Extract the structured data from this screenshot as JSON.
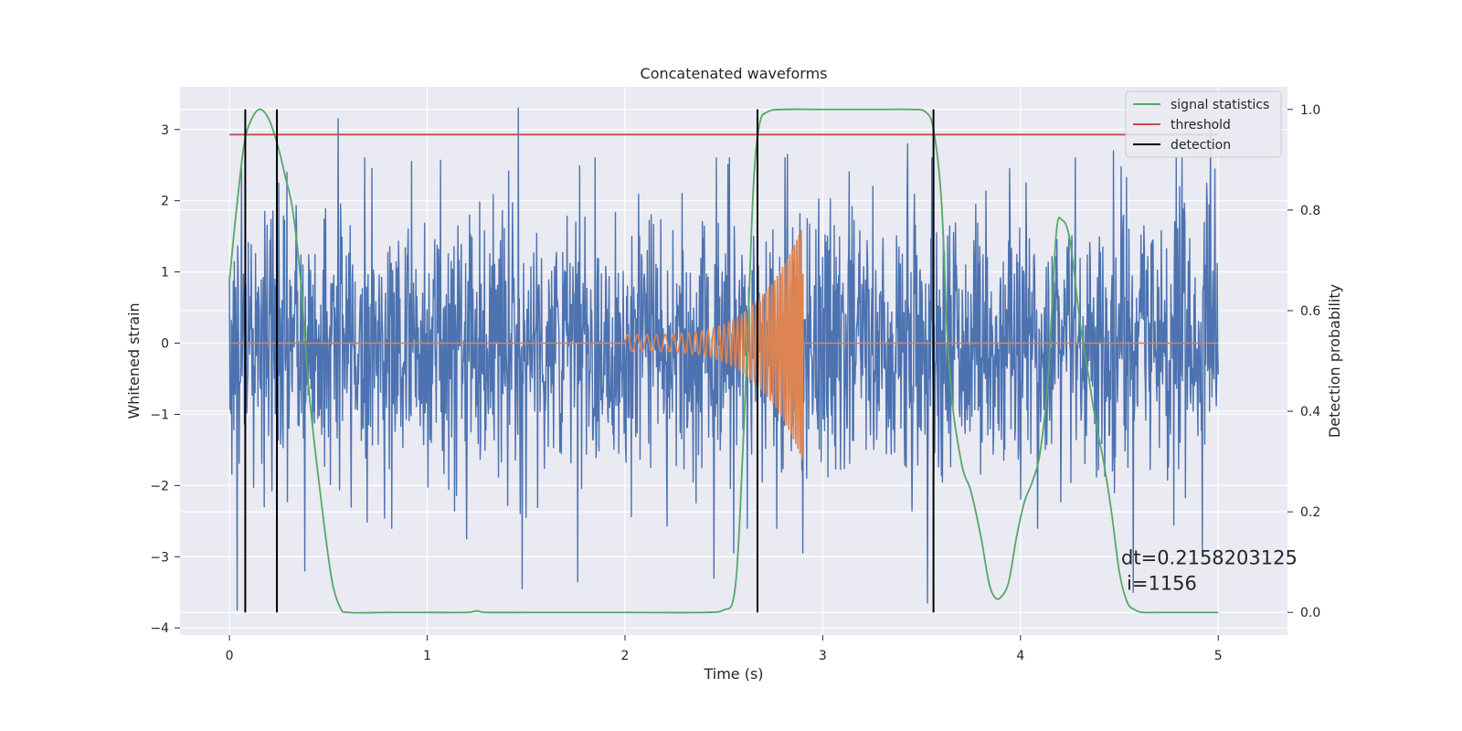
{
  "chart_data": {
    "type": "line",
    "title": "Concatenated waveforms",
    "xlabel": "Time (s)",
    "ylabel": "Whitened strain",
    "y2label": "Detection probability",
    "xlim": [
      -0.25,
      5.35
    ],
    "ylim": [
      -4.1,
      3.6
    ],
    "y2lim": [
      -0.045,
      1.045
    ],
    "xticks": [
      0,
      1,
      2,
      3,
      4,
      5
    ],
    "yticks": [
      -4,
      -3,
      -2,
      -1,
      0,
      1,
      2,
      3
    ],
    "y2ticks": [
      0.0,
      0.2,
      0.4,
      0.6,
      0.8,
      1.0
    ],
    "grid": true,
    "legend_position": "top-right",
    "colors": {
      "noise": "#4c72b0",
      "signal": "#dd8452",
      "statistics": "#55a868",
      "threshold": "#c44e52",
      "detection": "#000000",
      "plot_bg": "#eaeaf2",
      "grid": "#ffffff"
    },
    "legend": [
      "signal statistics",
      "threshold",
      "detection"
    ],
    "noise": {
      "x_range": [
        0,
        5
      ],
      "samples": 2048,
      "sigma": 0.95,
      "spike_values": [
        {
          "x": 0.04,
          "y": -3.75
        },
        {
          "x": 0.06,
          "y": 2.45
        },
        {
          "x": 0.25,
          "y": 2.25
        },
        {
          "x": 0.38,
          "y": -3.2
        },
        {
          "x": 0.55,
          "y": 3.15
        },
        {
          "x": 0.92,
          "y": 2.55
        },
        {
          "x": 1.2,
          "y": -2.75
        },
        {
          "x": 1.46,
          "y": 3.3
        },
        {
          "x": 1.48,
          "y": -3.45
        },
        {
          "x": 1.76,
          "y": -3.35
        },
        {
          "x": 2.45,
          "y": -3.3
        },
        {
          "x": 2.55,
          "y": -2.95
        },
        {
          "x": 2.82,
          "y": 2.65
        },
        {
          "x": 2.9,
          "y": -2.95
        },
        {
          "x": 3.43,
          "y": 2.8
        },
        {
          "x": 3.53,
          "y": -3.65
        },
        {
          "x": 4.47,
          "y": 2.7
        },
        {
          "x": 4.57,
          "y": -3.5
        },
        {
          "x": 4.92,
          "y": -2.9
        },
        {
          "x": 4.96,
          "y": 3.1
        }
      ]
    },
    "signal": {
      "x_start": 2.0,
      "x_end": 2.9,
      "amp_start": 0.12,
      "amp_end": 1.65,
      "freq_start": 20,
      "freq_end": 95
    },
    "series": [
      {
        "name": "signal statistics",
        "axis": "y2",
        "x": [
          0.0,
          0.03,
          0.07,
          0.1,
          0.15,
          0.2,
          0.25,
          0.28,
          0.32,
          0.36,
          0.4,
          0.44,
          0.48,
          0.52,
          0.56,
          0.6,
          0.8,
          1.0,
          1.2,
          1.25,
          1.3,
          1.5,
          2.0,
          2.4,
          2.5,
          2.55,
          2.58,
          2.62,
          2.65,
          2.68,
          2.72,
          2.8,
          3.0,
          3.3,
          3.45,
          3.52,
          3.56,
          3.6,
          3.63,
          3.66,
          3.7,
          3.72,
          3.75,
          3.8,
          3.84,
          3.87,
          3.9,
          3.94,
          3.98,
          4.02,
          4.06,
          4.1,
          4.14,
          4.18,
          4.21,
          4.25,
          4.3,
          4.34,
          4.38,
          4.42,
          4.46,
          4.5,
          4.54,
          4.58,
          4.62,
          4.7,
          5.0
        ],
        "y": [
          0.66,
          0.78,
          0.92,
          0.97,
          1.0,
          0.98,
          0.92,
          0.87,
          0.8,
          0.66,
          0.45,
          0.3,
          0.17,
          0.06,
          0.01,
          0.0,
          0.0,
          0.0,
          0.0,
          0.003,
          0.0,
          0.0,
          0.0,
          0.0,
          0.005,
          0.03,
          0.18,
          0.55,
          0.85,
          0.97,
          0.995,
          1.0,
          1.0,
          1.0,
          1.0,
          0.995,
          0.96,
          0.82,
          0.55,
          0.4,
          0.3,
          0.27,
          0.24,
          0.15,
          0.06,
          0.03,
          0.03,
          0.06,
          0.15,
          0.22,
          0.26,
          0.32,
          0.47,
          0.75,
          0.78,
          0.74,
          0.58,
          0.48,
          0.38,
          0.3,
          0.2,
          0.08,
          0.02,
          0.005,
          0.0,
          0.0,
          0.0
        ]
      },
      {
        "name": "threshold",
        "axis": "y2",
        "x": [
          0.0,
          5.0
        ],
        "y": [
          0.95,
          0.95
        ]
      }
    ],
    "detections": [
      0.08,
      0.24,
      2.67,
      3.56
    ],
    "annotation": {
      "line1": "dt=0.2158203125",
      "line2": "i=1156",
      "x": 4.5,
      "y": -3.0
    }
  }
}
